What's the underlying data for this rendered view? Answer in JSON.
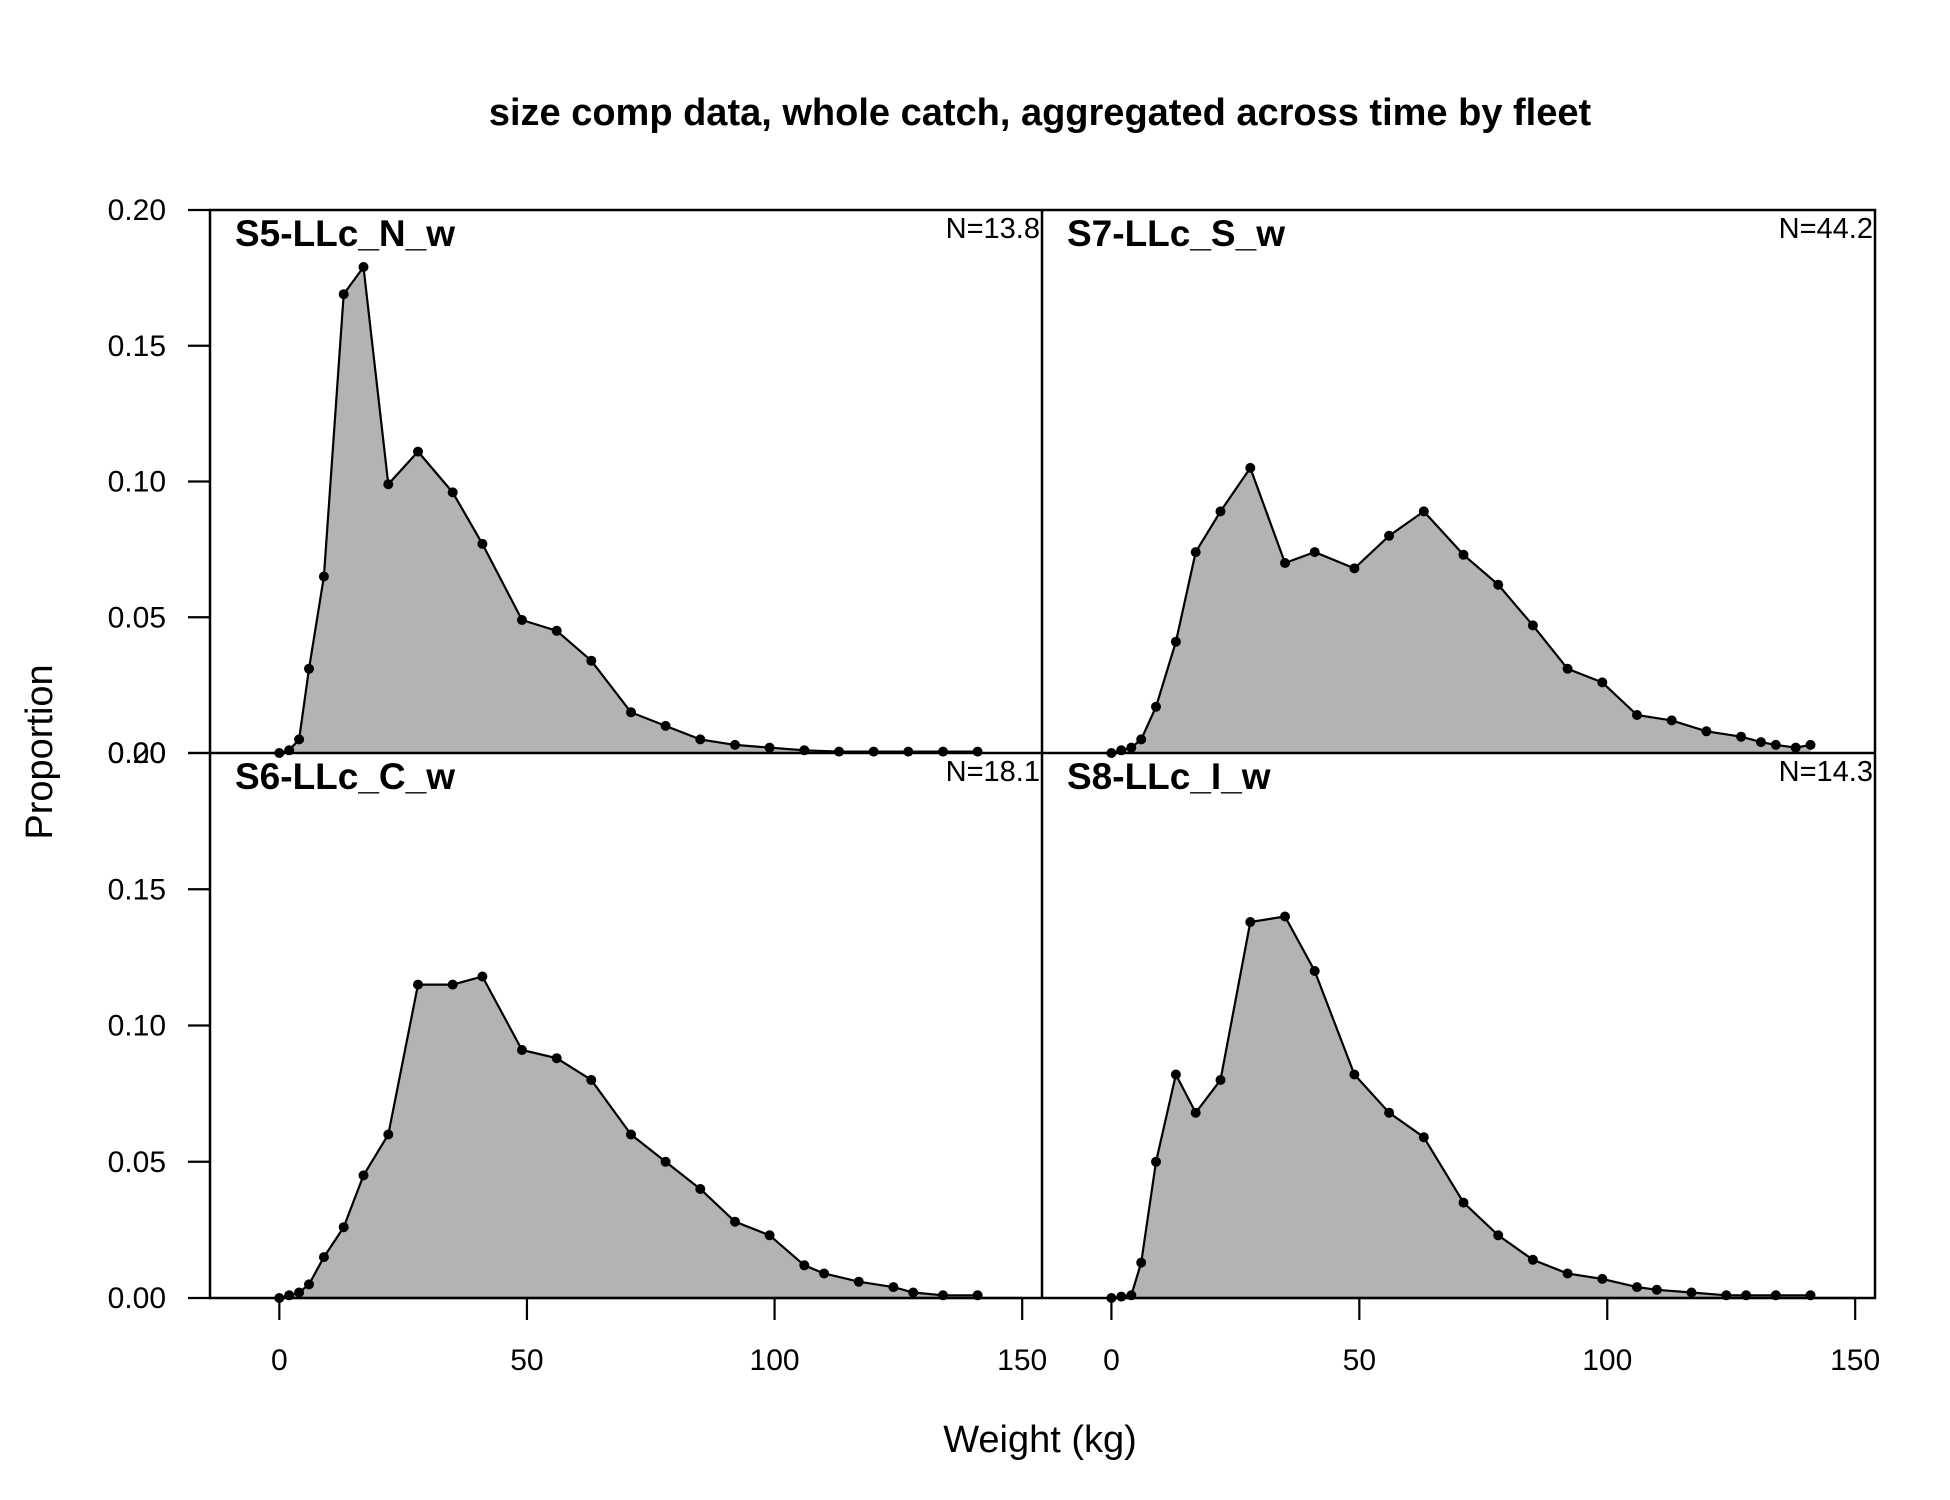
{
  "chart_data": {
    "type": "area",
    "title": "size comp data, whole catch, aggregated across time by fleet",
    "xlabel": "Weight (kg)",
    "ylabel": "Proportion",
    "xlim": [
      -14,
      154
    ],
    "ylim": [
      0,
      0.2
    ],
    "x_ticks": [
      "0",
      "50",
      "100",
      "150"
    ],
    "y_ticks": [
      "0.00",
      "0.05",
      "0.10",
      "0.15",
      "0.20"
    ],
    "fill_color": "#b3b3b3",
    "line_color": "#000000",
    "layout": "2x2",
    "panels": [
      {
        "name": "S5-LLc_N_w",
        "n_label": "N=13.8",
        "position": "top-left",
        "x": [
          0,
          2,
          4,
          6,
          9,
          13,
          17,
          22,
          28,
          35,
          41,
          49,
          56,
          63,
          71,
          78,
          85,
          92,
          99,
          106,
          113,
          120,
          127,
          134,
          141
        ],
        "y": [
          0.0,
          0.001,
          0.005,
          0.031,
          0.065,
          0.169,
          0.179,
          0.099,
          0.111,
          0.096,
          0.077,
          0.049,
          0.045,
          0.034,
          0.015,
          0.01,
          0.005,
          0.003,
          0.002,
          0.001,
          0.0005,
          0.0005,
          0.0005,
          0.0005,
          0.0005
        ]
      },
      {
        "name": "S7-LLc_S_w",
        "n_label": "N=44.2",
        "position": "top-right",
        "x": [
          0,
          2,
          4,
          6,
          9,
          13,
          17,
          22,
          28,
          35,
          41,
          49,
          56,
          63,
          71,
          78,
          85,
          92,
          99,
          106,
          113,
          120,
          127,
          131,
          134,
          138,
          141
        ],
        "y": [
          0.0,
          0.001,
          0.002,
          0.005,
          0.017,
          0.041,
          0.074,
          0.089,
          0.105,
          0.07,
          0.074,
          0.068,
          0.08,
          0.089,
          0.073,
          0.062,
          0.047,
          0.031,
          0.026,
          0.014,
          0.012,
          0.008,
          0.006,
          0.004,
          0.003,
          0.002,
          0.003
        ]
      },
      {
        "name": "S6-LLc_C_w",
        "n_label": "N=18.1",
        "position": "bottom-left",
        "x": [
          0,
          2,
          4,
          6,
          9,
          13,
          17,
          22,
          28,
          35,
          41,
          49,
          56,
          63,
          71,
          78,
          85,
          92,
          99,
          106,
          110,
          117,
          124,
          128,
          134,
          141
        ],
        "y": [
          0.0,
          0.001,
          0.002,
          0.005,
          0.015,
          0.026,
          0.045,
          0.06,
          0.115,
          0.115,
          0.118,
          0.091,
          0.088,
          0.08,
          0.06,
          0.05,
          0.04,
          0.028,
          0.023,
          0.012,
          0.009,
          0.006,
          0.004,
          0.002,
          0.001,
          0.001
        ]
      },
      {
        "name": "S8-LLc_I_w",
        "n_label": "N=14.3",
        "position": "bottom-right",
        "x": [
          0,
          2,
          4,
          6,
          9,
          13,
          17,
          22,
          28,
          35,
          41,
          49,
          56,
          63,
          71,
          78,
          85,
          92,
          99,
          106,
          110,
          117,
          124,
          128,
          134,
          141
        ],
        "y": [
          0.0,
          0.0005,
          0.001,
          0.013,
          0.05,
          0.082,
          0.068,
          0.08,
          0.138,
          0.14,
          0.12,
          0.082,
          0.068,
          0.059,
          0.035,
          0.023,
          0.014,
          0.009,
          0.007,
          0.004,
          0.003,
          0.002,
          0.001,
          0.001,
          0.001,
          0.001
        ]
      }
    ]
  }
}
